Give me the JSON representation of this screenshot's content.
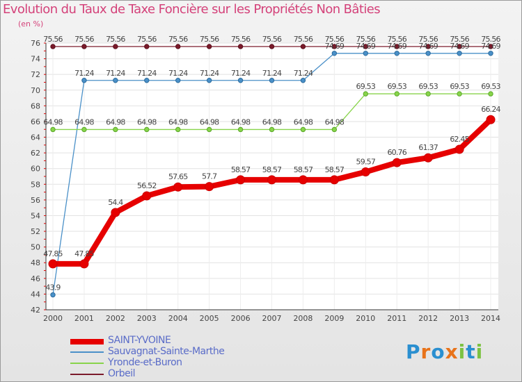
{
  "chart_data": {
    "type": "line",
    "title": "Evolution du Taux de Taxe Foncière sur les Propriétés Non Bâties",
    "ylabel": "(en %)",
    "xlabel": "",
    "ylim": [
      42,
      76
    ],
    "yticks": [
      "42",
      "44",
      "46",
      "48",
      "50",
      "52",
      "54",
      "56",
      "58",
      "60",
      "62",
      "64",
      "66",
      "68",
      "70",
      "72",
      "74",
      "76"
    ],
    "categories": [
      "2000",
      "2001",
      "2002",
      "2003",
      "2004",
      "2005",
      "2006",
      "2007",
      "2008",
      "2009",
      "2010",
      "2011",
      "2012",
      "2013",
      "2014"
    ],
    "series": [
      {
        "name": "Orbeil",
        "color": "#7b1a2a",
        "values": [
          75.56,
          75.56,
          75.56,
          75.56,
          75.56,
          75.56,
          75.56,
          75.56,
          75.56,
          75.56,
          75.56,
          75.56,
          75.56,
          75.56,
          75.56
        ],
        "labels": [
          "75.56",
          "75.56",
          "75.56",
          "75.56",
          "75.56",
          "75.56",
          "75.56",
          "75.56",
          "75.56",
          "75.56",
          "75.56",
          "75.56",
          "75.56",
          "75.56",
          "75.56"
        ]
      },
      {
        "name": "Sauvagnat-Sainte-Marthe",
        "color": "#4a90c8",
        "values": [
          43.9,
          71.24,
          71.24,
          71.24,
          71.24,
          71.24,
          71.24,
          71.24,
          71.24,
          74.69,
          74.69,
          74.69,
          74.69,
          74.69,
          74.69
        ],
        "labels": [
          "43.9",
          "71.24",
          "71.24",
          "71.24",
          "71.24",
          "71.24",
          "71.24",
          "71.24",
          "71.24",
          "74.69",
          "74.69",
          "74.69",
          "74.69",
          "74.69",
          "74.69"
        ]
      },
      {
        "name": "Yronde-et-Buron",
        "color": "#88d44a",
        "values": [
          64.98,
          64.98,
          64.98,
          64.98,
          64.98,
          64.98,
          64.98,
          64.98,
          64.98,
          64.98,
          69.53,
          69.53,
          69.53,
          69.53,
          69.53
        ],
        "labels": [
          "64.98",
          "64.98",
          "64.98",
          "64.98",
          "64.98",
          "64.98",
          "64.98",
          "64.98",
          "64.98",
          "64.98",
          "69.53",
          "69.53",
          "69.53",
          "69.53",
          "69.53"
        ]
      },
      {
        "name": "SAINT-YVOINE",
        "color": "#e60000",
        "values": [
          47.85,
          47.85,
          54.4,
          56.52,
          57.65,
          57.7,
          58.57,
          58.57,
          58.57,
          58.57,
          59.57,
          60.76,
          61.37,
          62.45,
          66.24
        ],
        "labels": [
          "47.85",
          "47.85",
          "54.4",
          "56.52",
          "57.65",
          "57.7",
          "58.57",
          "58.57",
          "58.57",
          "58.57",
          "59.57",
          "60.76",
          "61.37",
          "62.45",
          "66.24"
        ]
      }
    ]
  },
  "legend": [
    {
      "name": "SAINT-YVOINE",
      "color": "#e60000"
    },
    {
      "name": "Sauvagnat-Sainte-Marthe",
      "color": "#4a90c8"
    },
    {
      "name": "Yronde-et-Buron",
      "color": "#88d44a"
    },
    {
      "name": "Orbeil",
      "color": "#7b1a2a"
    }
  ],
  "brand": {
    "text": "Proxiti",
    "letters": [
      "P",
      "r",
      "o",
      "x",
      "i",
      "t",
      "i"
    ],
    "colors": [
      "#2a8fd0",
      "#e8731a",
      "#2a8fd0",
      "#e8731a",
      "#7cc242",
      "#2a8fd0",
      "#7cc242"
    ]
  }
}
